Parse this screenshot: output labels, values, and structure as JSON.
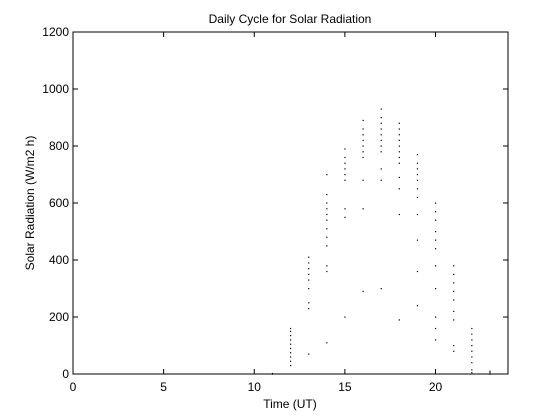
{
  "chart_data": {
    "type": "scatter",
    "title": "Daily Cycle for Solar Radiation",
    "xlabel": "Time (UT)",
    "ylabel": "Solar Radiation (W/m2 h)",
    "xlim": [
      0,
      24
    ],
    "ylim": [
      0,
      1200
    ],
    "xticks": [
      0,
      5,
      10,
      15,
      20
    ],
    "yticks": [
      0,
      200,
      400,
      600,
      800,
      1000,
      1200
    ],
    "grid": false,
    "legend": "none",
    "marker_color": "#000000",
    "series": [
      {
        "points": [
          [
            11,
            0
          ],
          [
            11,
            2
          ],
          [
            12,
            30
          ],
          [
            12,
            45
          ],
          [
            12,
            60
          ],
          [
            12,
            75
          ],
          [
            12,
            90
          ],
          [
            12,
            105
          ],
          [
            12,
            120
          ],
          [
            12,
            135
          ],
          [
            12,
            150
          ],
          [
            12,
            160
          ],
          [
            13,
            70
          ],
          [
            13,
            230
          ],
          [
            13,
            250
          ],
          [
            13,
            300
          ],
          [
            13,
            330
          ],
          [
            13,
            350
          ],
          [
            13,
            370
          ],
          [
            13,
            390
          ],
          [
            13,
            410
          ],
          [
            14,
            110
          ],
          [
            14,
            360
          ],
          [
            14,
            380
          ],
          [
            14,
            450
          ],
          [
            14,
            480
          ],
          [
            14,
            510
          ],
          [
            14,
            540
          ],
          [
            14,
            560
          ],
          [
            14,
            580
          ],
          [
            14,
            600
          ],
          [
            14,
            630
          ],
          [
            14,
            700
          ],
          [
            15,
            200
          ],
          [
            15,
            550
          ],
          [
            15,
            580
          ],
          [
            15,
            680
          ],
          [
            15,
            700
          ],
          [
            15,
            720
          ],
          [
            15,
            740
          ],
          [
            15,
            760
          ],
          [
            15,
            790
          ],
          [
            16,
            290
          ],
          [
            16,
            580
          ],
          [
            16,
            680
          ],
          [
            16,
            760
          ],
          [
            16,
            780
          ],
          [
            16,
            800
          ],
          [
            16,
            820
          ],
          [
            16,
            840
          ],
          [
            16,
            860
          ],
          [
            16,
            890
          ],
          [
            17,
            300
          ],
          [
            17,
            680
          ],
          [
            17,
            720
          ],
          [
            17,
            780
          ],
          [
            17,
            800
          ],
          [
            17,
            820
          ],
          [
            17,
            840
          ],
          [
            17,
            860
          ],
          [
            17,
            880
          ],
          [
            17,
            900
          ],
          [
            17,
            930
          ],
          [
            18,
            190
          ],
          [
            18,
            560
          ],
          [
            18,
            650
          ],
          [
            18,
            690
          ],
          [
            18,
            740
          ],
          [
            18,
            760
          ],
          [
            18,
            780
          ],
          [
            18,
            800
          ],
          [
            18,
            820
          ],
          [
            18,
            840
          ],
          [
            18,
            860
          ],
          [
            18,
            880
          ],
          [
            19,
            240
          ],
          [
            19,
            360
          ],
          [
            19,
            470
          ],
          [
            19,
            560
          ],
          [
            19,
            620
          ],
          [
            19,
            650
          ],
          [
            19,
            680
          ],
          [
            19,
            700
          ],
          [
            19,
            720
          ],
          [
            19,
            740
          ],
          [
            19,
            770
          ],
          [
            20,
            120
          ],
          [
            20,
            160
          ],
          [
            20,
            200
          ],
          [
            20,
            300
          ],
          [
            20,
            380
          ],
          [
            20,
            440
          ],
          [
            20,
            470
          ],
          [
            20,
            500
          ],
          [
            20,
            540
          ],
          [
            20,
            570
          ],
          [
            20,
            600
          ],
          [
            21,
            80
          ],
          [
            21,
            100
          ],
          [
            21,
            190
          ],
          [
            21,
            220
          ],
          [
            21,
            260
          ],
          [
            21,
            290
          ],
          [
            21,
            320
          ],
          [
            21,
            350
          ],
          [
            21,
            380
          ],
          [
            22,
            5
          ],
          [
            22,
            15
          ],
          [
            22,
            40
          ],
          [
            22,
            60
          ],
          [
            22,
            80
          ],
          [
            22,
            100
          ],
          [
            22,
            120
          ],
          [
            22,
            140
          ],
          [
            22,
            160
          ],
          [
            23,
            0
          ],
          [
            23,
            5
          ],
          [
            23,
            10
          ]
        ]
      }
    ]
  }
}
